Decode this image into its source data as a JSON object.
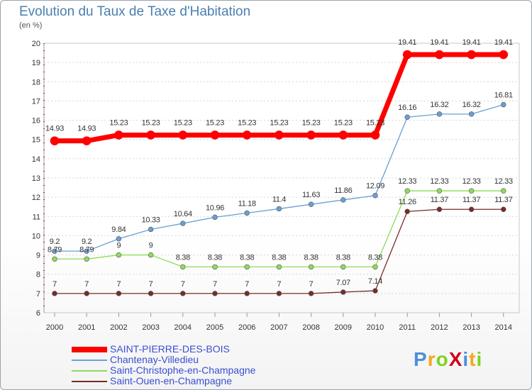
{
  "title": "Evolution du Taux de Taxe d'Habitation",
  "subtitle": "(en %)",
  "logo": {
    "text": "ProXiti",
    "colors": [
      "#4a90d9",
      "#f5a623",
      "#7ed321",
      "#d0021b",
      "#4a90d9",
      "#f5a623",
      "#7ed321"
    ]
  },
  "chart_data": {
    "type": "line",
    "title": "Evolution du Taux de Taxe d'Habitation",
    "ylabel": "(en %)",
    "xlabel": "",
    "ylim": [
      6,
      20
    ],
    "yticks": [
      6,
      7,
      8,
      9,
      10,
      11,
      12,
      13,
      14,
      15,
      16,
      17,
      18,
      19,
      20
    ],
    "grid": "horizontal dashed",
    "legend_position": "bottom-left",
    "x": [
      "2000",
      "2001",
      "2002",
      "2003",
      "2004",
      "2005",
      "2006",
      "2007",
      "2008",
      "2009",
      "2010",
      "2011",
      "2012",
      "2013",
      "2014"
    ],
    "series": [
      {
        "name": "SAINT-PIERRE-DES-BOIS",
        "color": "#ff0000",
        "line_width": 6,
        "values": [
          14.93,
          14.93,
          15.23,
          15.23,
          15.23,
          15.23,
          15.23,
          15.23,
          15.23,
          15.23,
          15.23,
          19.41,
          19.41,
          19.41,
          19.41
        ],
        "labels": [
          "14.93",
          "14.93",
          "15.23",
          "15.23",
          "15.23",
          "15.23",
          "15.23",
          "15.23",
          "15.23",
          "15.23",
          "15.23",
          "19.41",
          "19.41",
          "19.41",
          "19.41"
        ]
      },
      {
        "name": "Chantenay-Villedieu",
        "color": "#6a9fd4",
        "line_width": 1,
        "values": [
          9.2,
          9.2,
          9.84,
          10.33,
          10.64,
          10.96,
          11.18,
          11.4,
          11.63,
          11.86,
          12.09,
          16.16,
          16.32,
          16.32,
          16.81
        ],
        "labels": [
          "9.2",
          "9.2",
          "9.84",
          "10.33",
          "10.64",
          "10.96",
          "11.18",
          "11.4",
          "11.63",
          "11.86",
          "12.09",
          "16.16",
          "16.32",
          "16.32",
          "16.81"
        ]
      },
      {
        "name": "Saint-Christophe-en-Champagne",
        "color": "#8fdb5a",
        "line_width": 1,
        "values": [
          8.79,
          8.79,
          9,
          9,
          8.38,
          8.38,
          8.38,
          8.38,
          8.38,
          8.38,
          8.38,
          12.33,
          12.33,
          12.33,
          12.33
        ],
        "labels": [
          "8.79",
          "8.79",
          "9",
          "9",
          "8.38",
          "8.38",
          "8.38",
          "8.38",
          "8.38",
          "8.38",
          "8.38",
          "12.33",
          "12.33",
          "12.33",
          "12.33"
        ]
      },
      {
        "name": "Saint-Ouen-en-Champagne",
        "color": "#7a2a2a",
        "line_width": 1,
        "values": [
          7,
          7,
          7,
          7,
          7,
          7,
          7,
          7,
          7,
          7.07,
          7.14,
          11.26,
          11.37,
          11.37,
          11.37
        ],
        "labels": [
          "7",
          "7",
          "7",
          "7",
          "7",
          "7",
          "7",
          "7",
          "7",
          "7.07",
          "7.14",
          "11.26",
          "11.37",
          "11.37",
          "11.37"
        ]
      }
    ]
  }
}
